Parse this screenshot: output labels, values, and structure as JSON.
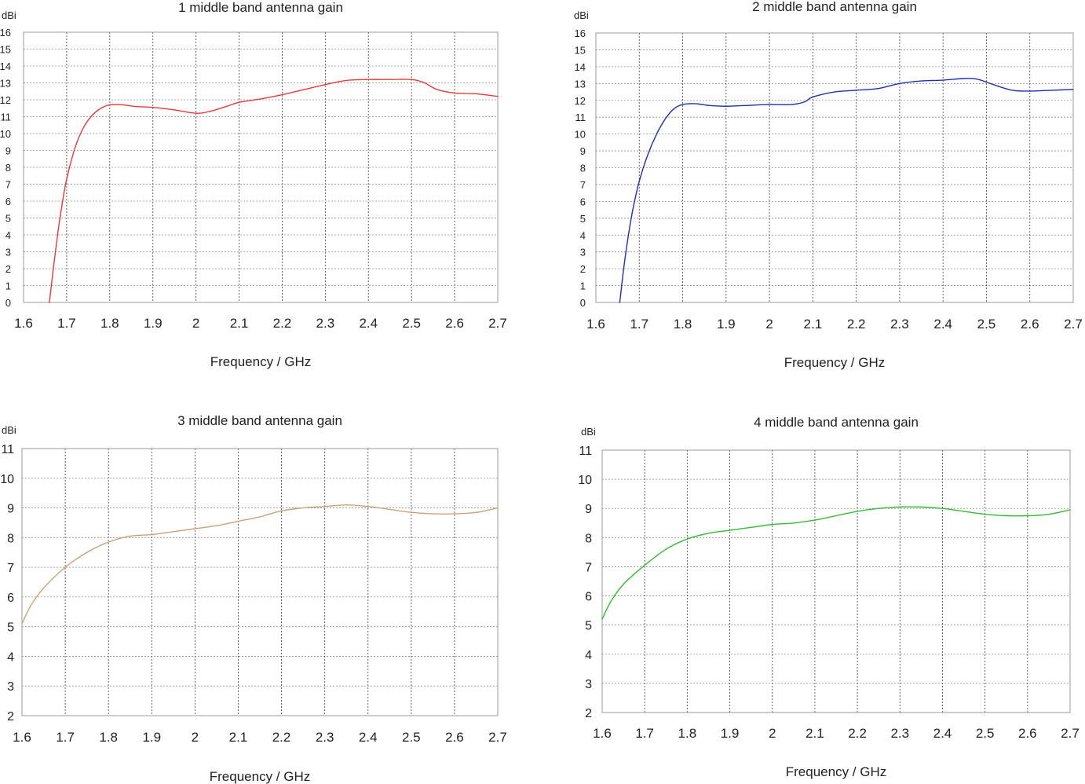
{
  "chart_data": [
    {
      "type": "line",
      "title": "1 middle band antenna gain",
      "xlabel": "Frequency / GHz",
      "ylabel": "dBi",
      "xlim": [
        1.6,
        2.7
      ],
      "ylim": [
        0,
        16
      ],
      "x_ticks": [
        "1.6",
        "1.7",
        "1.8",
        "1.9",
        "2",
        "2.1",
        "2.2",
        "2.3",
        "2.4",
        "2.5",
        "2.6",
        "2.7"
      ],
      "y_ticks": [
        "0",
        "1",
        "2",
        "3",
        "4",
        "5",
        "6",
        "7",
        "8",
        "9",
        "10",
        "11",
        "12",
        "13",
        "14",
        "15",
        "16"
      ],
      "grid": true,
      "color": "#e8393a",
      "series": [
        {
          "x": [
            1.66,
            1.67,
            1.68,
            1.69,
            1.7,
            1.72,
            1.74,
            1.76,
            1.78,
            1.8,
            1.83,
            1.86,
            1.9,
            1.95,
            2.0,
            2.03,
            2.07,
            2.1,
            2.15,
            2.2,
            2.25,
            2.3,
            2.35,
            2.4,
            2.45,
            2.5,
            2.53,
            2.56,
            2.6,
            2.65,
            2.7
          ],
          "y": [
            0,
            2.2,
            4.2,
            5.9,
            7.3,
            9.2,
            10.4,
            11.1,
            11.5,
            11.7,
            11.7,
            11.6,
            11.55,
            11.4,
            11.2,
            11.3,
            11.6,
            11.85,
            12.05,
            12.3,
            12.6,
            12.9,
            13.15,
            13.2,
            13.2,
            13.2,
            13.0,
            12.6,
            12.4,
            12.35,
            12.2
          ]
        }
      ]
    },
    {
      "type": "line",
      "title": "2 middle band antenna gain",
      "xlabel": "Frequency / GHz",
      "ylabel": "dBi",
      "xlim": [
        1.6,
        2.7
      ],
      "ylim": [
        0,
        16
      ],
      "x_ticks": [
        "1.6",
        "1.7",
        "1.8",
        "1.9",
        "2",
        "2.1",
        "2.2",
        "2.3",
        "2.4",
        "2.5",
        "2.6",
        "2.7"
      ],
      "y_ticks": [
        "0",
        "1",
        "2",
        "3",
        "4",
        "5",
        "6",
        "7",
        "8",
        "9",
        "10",
        "11",
        "12",
        "13",
        "14",
        "15",
        "16"
      ],
      "grid": true,
      "color": "#1f2fb0",
      "series": [
        {
          "x": [
            1.655,
            1.665,
            1.675,
            1.685,
            1.7,
            1.72,
            1.74,
            1.76,
            1.78,
            1.8,
            1.83,
            1.86,
            1.9,
            1.95,
            2.0,
            2.05,
            2.08,
            2.1,
            2.15,
            2.2,
            2.25,
            2.3,
            2.35,
            2.4,
            2.45,
            2.48,
            2.52,
            2.56,
            2.6,
            2.65,
            2.7
          ],
          "y": [
            0,
            2.2,
            4.0,
            5.5,
            7.2,
            8.8,
            10.0,
            10.9,
            11.5,
            11.75,
            11.8,
            11.7,
            11.65,
            11.7,
            11.75,
            11.75,
            11.9,
            12.2,
            12.5,
            12.6,
            12.7,
            13.0,
            13.15,
            13.2,
            13.3,
            13.25,
            12.9,
            12.6,
            12.55,
            12.6,
            12.65
          ]
        }
      ]
    },
    {
      "type": "line",
      "title": "3 middle band antenna gain",
      "xlabel": "Frequency / GHz",
      "ylabel": "dBi",
      "xlim": [
        1.6,
        2.7
      ],
      "ylim": [
        2,
        11
      ],
      "x_ticks": [
        "1.6",
        "1.7",
        "1.8",
        "1.9",
        "2",
        "2.1",
        "2.2",
        "2.3",
        "2.4",
        "2.5",
        "2.6",
        "2.7"
      ],
      "y_ticks": [
        "2",
        "3",
        "4",
        "5",
        "6",
        "7",
        "8",
        "9",
        "10",
        "11"
      ],
      "grid": true,
      "color": "#c9a27a",
      "series": [
        {
          "x": [
            1.6,
            1.62,
            1.65,
            1.7,
            1.75,
            1.8,
            1.85,
            1.9,
            1.95,
            2.0,
            2.05,
            2.1,
            2.15,
            2.2,
            2.25,
            2.3,
            2.35,
            2.4,
            2.45,
            2.5,
            2.55,
            2.6,
            2.65,
            2.7
          ],
          "y": [
            5.1,
            5.7,
            6.3,
            7.0,
            7.5,
            7.85,
            8.05,
            8.1,
            8.2,
            8.3,
            8.4,
            8.55,
            8.7,
            8.9,
            9.0,
            9.05,
            9.1,
            9.05,
            8.95,
            8.85,
            8.8,
            8.8,
            8.85,
            9.0
          ]
        }
      ]
    },
    {
      "type": "line",
      "title": "4 middle band antenna gain",
      "xlabel": "Frequency / GHz",
      "ylabel": "dBi",
      "xlim": [
        1.6,
        2.7
      ],
      "ylim": [
        2,
        11
      ],
      "x_ticks": [
        "1.6",
        "1.7",
        "1.8",
        "1.9",
        "2",
        "2.1",
        "2.2",
        "2.3",
        "2.4",
        "2.5",
        "2.6",
        "2.7"
      ],
      "y_ticks": [
        "2",
        "3",
        "4",
        "5",
        "6",
        "7",
        "8",
        "9",
        "10",
        "11"
      ],
      "grid": true,
      "color": "#33bb33",
      "series": [
        {
          "x": [
            1.6,
            1.62,
            1.65,
            1.7,
            1.75,
            1.8,
            1.85,
            1.9,
            1.95,
            2.0,
            2.05,
            2.1,
            2.15,
            2.2,
            2.25,
            2.3,
            2.35,
            2.4,
            2.45,
            2.5,
            2.55,
            2.6,
            2.65,
            2.7
          ],
          "y": [
            5.2,
            5.8,
            6.4,
            7.05,
            7.6,
            7.95,
            8.15,
            8.25,
            8.35,
            8.45,
            8.5,
            8.6,
            8.75,
            8.9,
            9.0,
            9.05,
            9.05,
            9.0,
            8.9,
            8.8,
            8.75,
            8.75,
            8.8,
            8.95
          ]
        }
      ]
    }
  ]
}
